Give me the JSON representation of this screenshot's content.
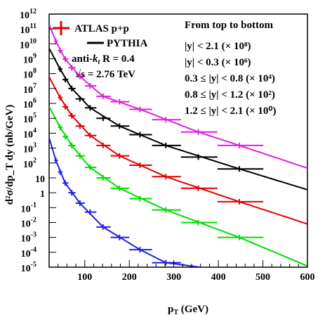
{
  "chart_data": {
    "type": "scatter",
    "xlabel_main": "p",
    "xlabel_sub": "T",
    "xlabel_unit": " (GeV)",
    "ylabel_text": "d²σ/dp_T dy (nb/GeV)",
    "xlim": [
      20,
      600
    ],
    "ylim": [
      1e-05,
      1000000000000.0
    ],
    "yscale": "log",
    "xticks": [
      {
        "v": 100,
        "label": "100"
      },
      {
        "v": 200,
        "label": "200"
      },
      {
        "v": 300,
        "label": "300"
      },
      {
        "v": 400,
        "label": "400"
      },
      {
        "v": 500,
        "label": "500"
      },
      {
        "v": 600,
        "label": "600"
      }
    ],
    "yticks": [
      {
        "exp": -5,
        "label": "10",
        "sup": "-5"
      },
      {
        "exp": -4,
        "label": "10",
        "sup": "-4"
      },
      {
        "exp": -3,
        "label": "10",
        "sup": "-3"
      },
      {
        "exp": -2,
        "label": "10",
        "sup": "-2"
      },
      {
        "exp": -1,
        "label": "10",
        "sup": "-1"
      },
      {
        "exp": 0,
        "label": "1",
        "sup": ""
      },
      {
        "exp": 1,
        "label": "10",
        "sup": ""
      },
      {
        "exp": 2,
        "label": "10",
        "sup": "2"
      },
      {
        "exp": 3,
        "label": "10",
        "sup": "3"
      },
      {
        "exp": 4,
        "label": "10",
        "sup": "4"
      },
      {
        "exp": 5,
        "label": "10",
        "sup": "5"
      },
      {
        "exp": 6,
        "label": "10",
        "sup": "6"
      },
      {
        "exp": 7,
        "label": "10",
        "sup": "7"
      },
      {
        "exp": 8,
        "label": "10",
        "sup": "8"
      },
      {
        "exp": 9,
        "label": "10",
        "sup": "9"
      },
      {
        "exp": 10,
        "label": "10",
        "sup": "10"
      },
      {
        "exp": 11,
        "label": "10",
        "sup": "11"
      },
      {
        "exp": 12,
        "label": "10",
        "sup": "12"
      }
    ],
    "legend": {
      "atlas": "ATLAS p+p",
      "pythia": "PYTHIA",
      "antikt_pre": "anti-",
      "antikt_k": "k",
      "antikt_t": "t",
      "antikt_post": " R = 0.4",
      "sqrts": "√s = 2.76 TeV",
      "header": "From top to bottom"
    },
    "series": [
      {
        "name": "|y| < 2.1",
        "scale_label": "|y| < 2.1 (× 10⁸)",
        "color": "#e020e0",
        "points": [
          {
            "x": 35,
            "xlo": 31.6,
            "xhi": 39.8,
            "y": 15000000000.0
          },
          {
            "x": 44.6,
            "xlo": 39.8,
            "xhi": 50.1,
            "y": 3500000000.0
          },
          {
            "x": 56.2,
            "xlo": 50.1,
            "xhi": 63.1,
            "y": 950000000.0
          },
          {
            "x": 70.8,
            "xlo": 63.1,
            "xhi": 79.4,
            "y": 250000000.0
          },
          {
            "x": 89.1,
            "xlo": 79.4,
            "xhi": 100,
            "y": 65000000.0
          },
          {
            "x": 112,
            "xlo": 100,
            "xhi": 126,
            "y": 15000000.0
          },
          {
            "x": 141,
            "xlo": 126,
            "xhi": 158,
            "y": 3000000.0
          },
          {
            "x": 178,
            "xlo": 158,
            "xhi": 200,
            "y": 1300000.0
          },
          {
            "x": 224,
            "xlo": 200,
            "xhi": 251,
            "y": 400000.0
          },
          {
            "x": 282,
            "xlo": 251,
            "xhi": 316,
            "y": 80000.0
          },
          {
            "x": 355,
            "xlo": 316,
            "xhi": 398,
            "y": 12000.0
          },
          {
            "x": 447,
            "xlo": 398,
            "xhi": 501,
            "y": 1500.0
          }
        ],
        "curve": [
          [
            20,
            200000000000.0
          ],
          [
            35,
            15000000000.0
          ],
          [
            56,
            950000000.0
          ],
          [
            89,
            65000000.0
          ],
          [
            141,
            3000000.0
          ],
          [
            224,
            400000.0
          ],
          [
            355,
            12000.0
          ],
          [
            447,
            1500.0
          ],
          [
            600,
            45
          ]
        ]
      },
      {
        "name": "|y| < 0.3",
        "scale_label": "|y| < 0.3 (× 10⁶)",
        "color": "#000000",
        "points": [
          {
            "x": 44.6,
            "xlo": 39.8,
            "xhi": 50.1,
            "y": 200000000.0
          },
          {
            "x": 56.2,
            "xlo": 50.1,
            "xhi": 63.1,
            "y": 40000000.0
          },
          {
            "x": 70.8,
            "xlo": 63.1,
            "xhi": 79.4,
            "y": 10000000.0
          },
          {
            "x": 89.1,
            "xlo": 79.4,
            "xhi": 100,
            "y": 2000000.0
          },
          {
            "x": 112,
            "xlo": 100,
            "xhi": 126,
            "y": 500000.0
          },
          {
            "x": 141,
            "xlo": 126,
            "xhi": 158,
            "y": 100000.0
          },
          {
            "x": 178,
            "xlo": 158,
            "xhi": 200,
            "y": 30000.0
          },
          {
            "x": 224,
            "xlo": 200,
            "xhi": 251,
            "y": 8000.0
          },
          {
            "x": 282,
            "xlo": 251,
            "xhi": 316,
            "y": 1500.0
          },
          {
            "x": 355,
            "xlo": 316,
            "xhi": 398,
            "y": 250
          },
          {
            "x": 447,
            "xlo": 398,
            "xhi": 501,
            "y": 40
          }
        ],
        "curve": [
          [
            20,
            5000000000.0
          ],
          [
            44.6,
            200000000.0
          ],
          [
            70.8,
            10000000.0
          ],
          [
            112,
            500000.0
          ],
          [
            178,
            30000.0
          ],
          [
            282,
            1500.0
          ],
          [
            447,
            40
          ],
          [
            600,
            1.6
          ]
        ]
      },
      {
        "name": "0.3 ≤ |y| < 0.8",
        "scale_label": "0.3  ≤ |y| < 0.8 (× 10⁴)",
        "color": "#e00000",
        "points": [
          {
            "x": 44.6,
            "xlo": 39.8,
            "xhi": 50.1,
            "y": 2500000.0
          },
          {
            "x": 56.2,
            "xlo": 50.1,
            "xhi": 63.1,
            "y": 600000.0
          },
          {
            "x": 70.8,
            "xlo": 63.1,
            "xhi": 79.4,
            "y": 150000.0
          },
          {
            "x": 89.1,
            "xlo": 79.4,
            "xhi": 100,
            "y": 30000.0
          },
          {
            "x": 112,
            "xlo": 100,
            "xhi": 126,
            "y": 7000.0
          },
          {
            "x": 141,
            "xlo": 126,
            "xhi": 158,
            "y": 1500.0
          },
          {
            "x": 178,
            "xlo": 158,
            "xhi": 200,
            "y": 300
          },
          {
            "x": 224,
            "xlo": 200,
            "xhi": 251,
            "y": 70
          },
          {
            "x": 282,
            "xlo": 251,
            "xhi": 316,
            "y": 12
          },
          {
            "x": 355,
            "xlo": 316,
            "xhi": 398,
            "y": 2
          },
          {
            "x": 447,
            "xlo": 398,
            "xhi": 501,
            "y": 0.25
          }
        ],
        "curve": [
          [
            20,
            60000000.0
          ],
          [
            44.6,
            2500000.0
          ],
          [
            70.8,
            150000.0
          ],
          [
            112,
            7000.0
          ],
          [
            178,
            300
          ],
          [
            282,
            12
          ],
          [
            447,
            0.25
          ],
          [
            600,
            0.008
          ]
        ]
      },
      {
        "name": "0.8 ≤ |y| < 1.2",
        "scale_label": "0.8  ≤ |y| < 1.2 (× 10²)",
        "color": "#00dd00",
        "points": [
          {
            "x": 44.6,
            "xlo": 39.8,
            "xhi": 50.1,
            "y": 25000.0
          },
          {
            "x": 56.2,
            "xlo": 50.1,
            "xhi": 63.1,
            "y": 6000.0
          },
          {
            "x": 70.8,
            "xlo": 63.1,
            "xhi": 79.4,
            "y": 1500.0
          },
          {
            "x": 89.1,
            "xlo": 79.4,
            "xhi": 100,
            "y": 300
          },
          {
            "x": 112,
            "xlo": 100,
            "xhi": 126,
            "y": 50
          },
          {
            "x": 141,
            "xlo": 126,
            "xhi": 158,
            "y": 10
          },
          {
            "x": 178,
            "xlo": 158,
            "xhi": 200,
            "y": 2
          },
          {
            "x": 224,
            "xlo": 200,
            "xhi": 251,
            "y": 0.4
          },
          {
            "x": 282,
            "xlo": 251,
            "xhi": 316,
            "y": 0.07
          },
          {
            "x": 355,
            "xlo": 316,
            "xhi": 398,
            "y": 0.01
          },
          {
            "x": 447,
            "xlo": 398,
            "xhi": 501,
            "y": 0.001
          }
        ],
        "curve": [
          [
            20,
            600000.0
          ],
          [
            44.6,
            25000.0
          ],
          [
            70.8,
            1500.0
          ],
          [
            112,
            50
          ],
          [
            178,
            2
          ],
          [
            282,
            0.07
          ],
          [
            447,
            0.001
          ],
          [
            600,
            1.2e-05
          ]
        ]
      },
      {
        "name": "1.2 ≤ |y| < 2.1",
        "scale_label": "1.2  ≤ |y| < 2.1 (× 10⁰)",
        "color": "#2020e0",
        "points": [
          {
            "x": 35,
            "xlo": 31.6,
            "xhi": 39.8,
            "y": 150
          },
          {
            "x": 44.6,
            "xlo": 39.8,
            "xhi": 50.1,
            "y": 25
          },
          {
            "x": 56.2,
            "xlo": 50.1,
            "xhi": 63.1,
            "y": 4.5
          },
          {
            "x": 70.8,
            "xlo": 63.1,
            "xhi": 79.4,
            "y": 1
          },
          {
            "x": 89.1,
            "xlo": 79.4,
            "xhi": 100,
            "y": 0.2
          },
          {
            "x": 112,
            "xlo": 100,
            "xhi": 126,
            "y": 0.05
          },
          {
            "x": 141,
            "xlo": 126,
            "xhi": 158,
            "y": 0.005
          },
          {
            "x": 178,
            "xlo": 158,
            "xhi": 200,
            "y": 0.001
          },
          {
            "x": 224,
            "xlo": 200,
            "xhi": 251,
            "y": 0.00015
          },
          {
            "x": 282,
            "xlo": 251,
            "xhi": 316,
            "y": 2e-05
          }
        ],
        "curve": [
          [
            20,
            5000.0
          ],
          [
            35,
            150
          ],
          [
            56,
            4.5
          ],
          [
            89,
            0.2
          ],
          [
            141,
            0.005
          ],
          [
            224,
            0.00015
          ],
          [
            282,
            2e-05
          ],
          [
            360,
            1e-05
          ]
        ]
      }
    ]
  }
}
